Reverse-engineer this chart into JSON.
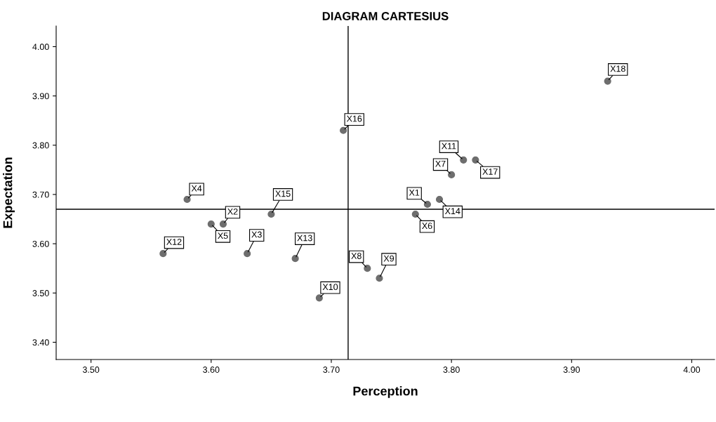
{
  "chart_data": {
    "type": "scatter",
    "title": "DIAGRAM CARTESIUS",
    "xlabel": "Perception",
    "ylabel": "Expectation",
    "x": [
      3.78,
      3.61,
      3.63,
      3.58,
      3.6,
      3.77,
      3.8,
      3.73,
      3.74,
      3.69,
      3.81,
      3.56,
      3.67,
      3.79,
      3.65,
      3.71,
      3.82,
      3.93
    ],
    "series": [
      {
        "color": "#6e6e6e",
        "values": [
          3.68,
          3.64,
          3.58,
          3.69,
          3.64,
          3.66,
          3.74,
          3.55,
          3.53,
          3.49,
          3.77,
          3.58,
          3.57,
          3.69,
          3.66,
          3.83,
          3.77,
          3.93
        ]
      }
    ],
    "annotations": [
      {
        "text": "X1",
        "x": 3.78,
        "y": 3.68
      },
      {
        "text": "X2",
        "x": 3.61,
        "y": 3.64
      },
      {
        "text": "X3",
        "x": 3.63,
        "y": 3.58
      },
      {
        "text": "X4",
        "x": 3.58,
        "y": 3.69
      },
      {
        "text": "X5",
        "x": 3.6,
        "y": 3.64
      },
      {
        "text": "X6",
        "x": 3.77,
        "y": 3.66
      },
      {
        "text": "X7",
        "x": 3.8,
        "y": 3.74
      },
      {
        "text": "X8",
        "x": 3.73,
        "y": 3.55
      },
      {
        "text": "X9",
        "x": 3.74,
        "y": 3.53
      },
      {
        "text": "X10",
        "x": 3.69,
        "y": 3.49
      },
      {
        "text": "X11",
        "x": 3.81,
        "y": 3.77
      },
      {
        "text": "X12",
        "x": 3.56,
        "y": 3.58
      },
      {
        "text": "X13",
        "x": 3.67,
        "y": 3.57
      },
      {
        "text": "X14",
        "x": 3.79,
        "y": 3.69
      },
      {
        "text": "X15",
        "x": 3.65,
        "y": 3.66
      },
      {
        "text": "X16",
        "x": 3.71,
        "y": 3.83
      },
      {
        "text": "X17",
        "x": 3.82,
        "y": 3.77
      },
      {
        "text": "X18",
        "x": 3.93,
        "y": 3.93
      }
    ],
    "ref_lines": [
      {
        "axis": "x",
        "value": 3.714,
        "color": "#000000"
      },
      {
        "axis": "y",
        "value": 3.67,
        "color": "#000000"
      }
    ],
    "xlim": [
      3.471,
      4.019
    ],
    "ylim": [
      3.365,
      4.042
    ],
    "xticks": [
      {
        "value": 3.5,
        "label": "3.50"
      },
      {
        "value": 3.6,
        "label": "3.60"
      },
      {
        "value": 3.7,
        "label": "3.70"
      },
      {
        "value": 3.8,
        "label": "3.80"
      },
      {
        "value": 3.9,
        "label": "3.90"
      },
      {
        "value": 4.0,
        "label": "4.00"
      }
    ],
    "yticks": [
      {
        "value": 3.4,
        "label": "3.40"
      },
      {
        "value": 3.5,
        "label": "3.50"
      },
      {
        "value": 3.6,
        "label": "3.60"
      },
      {
        "value": 3.7,
        "label": "3.70"
      },
      {
        "value": 3.8,
        "label": "3.80"
      },
      {
        "value": 3.9,
        "label": "3.90"
      },
      {
        "value": 4.0,
        "label": "4.00"
      }
    ],
    "marker": "circle",
    "grid": false
  }
}
